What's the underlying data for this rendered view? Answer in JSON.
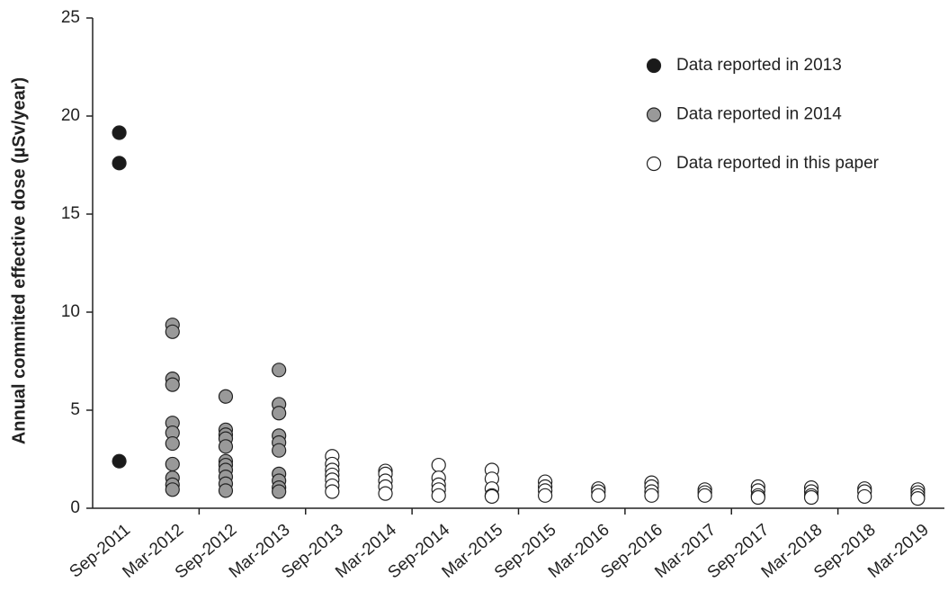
{
  "chart_data": {
    "type": "scatter",
    "y_label": "Annual commited effective dose (µSv/year)",
    "categories": [
      "Sep-2011",
      "Mar-2012",
      "Sep-2012",
      "Mar-2013",
      "Sep-2013",
      "Mar-2014",
      "Sep-2014",
      "Mar-2015",
      "Sep-2015",
      "Mar-2016",
      "Sep-2016",
      "Mar-2017",
      "Sep-2017",
      "Mar-2018",
      "Sep-2018",
      "Mar-2019"
    ],
    "ylim": [
      0,
      25
    ],
    "yticks": [
      0,
      5,
      10,
      15,
      20,
      25
    ],
    "grid": false,
    "legend": "top-right",
    "series": [
      {
        "name": "Data reported in 2013",
        "color": "#1a1a1a",
        "values": [
          [
            19.15,
            17.6,
            2.4
          ],
          null,
          null,
          null,
          null,
          null,
          null,
          null,
          null,
          null,
          null,
          null,
          null,
          null,
          null,
          null
        ]
      },
      {
        "name": "Data reported in 2014",
        "color": "#999999",
        "values": [
          null,
          [
            9.35,
            9.0,
            6.6,
            6.3,
            4.35,
            3.85,
            3.3,
            2.25,
            1.55,
            1.2,
            0.95
          ],
          [
            5.7,
            4.0,
            3.75,
            3.55,
            3.15,
            2.4,
            2.2,
            1.95,
            1.6,
            1.25,
            0.9
          ],
          [
            7.05,
            5.3,
            4.85,
            3.7,
            3.35,
            2.95,
            1.75,
            1.4,
            1.05,
            0.85
          ],
          null,
          null,
          null,
          null,
          null,
          null,
          null,
          null,
          null,
          null,
          null,
          null
        ]
      },
      {
        "name": "Data reported in this paper",
        "color": "#ffffff",
        "values": [
          null,
          null,
          null,
          null,
          [
            2.65,
            2.25,
            1.95,
            1.7,
            1.45,
            1.15,
            0.85
          ],
          [
            1.9,
            1.75,
            1.4,
            1.1,
            0.75
          ],
          [
            2.2,
            1.55,
            1.2,
            0.95,
            0.65
          ],
          [
            1.95,
            1.5,
            1.0,
            0.65,
            0.6
          ],
          [
            1.35,
            1.1,
            0.9,
            0.65
          ],
          [
            1.0,
            0.85,
            0.65
          ],
          [
            1.3,
            1.1,
            0.85,
            0.65
          ],
          [
            0.95,
            0.8,
            0.65
          ],
          [
            1.1,
            0.9,
            0.65,
            0.55
          ],
          [
            1.05,
            0.85,
            0.65,
            0.55
          ],
          [
            1.0,
            0.85,
            0.6
          ],
          [
            0.95,
            0.8,
            0.65,
            0.5
          ]
        ]
      }
    ]
  }
}
